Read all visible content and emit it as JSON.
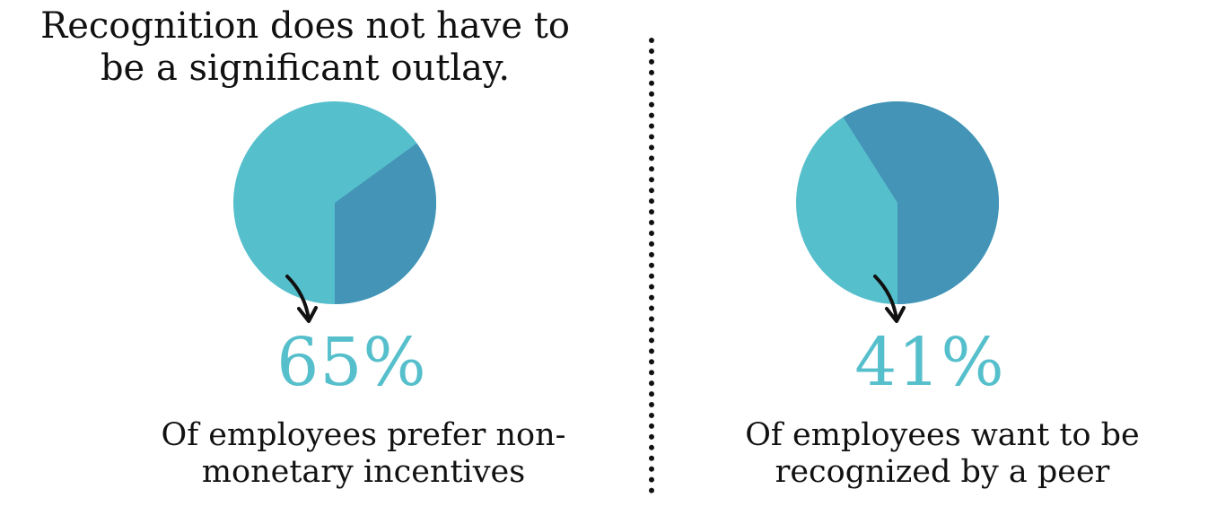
{
  "headline": "Recognition does not have to be a significant outlay.",
  "colors": {
    "light": "#56bfcc",
    "dark": "#4394b7",
    "text": "#111111",
    "divider": "#111111"
  },
  "chart_data": [
    {
      "type": "pie",
      "slices": [
        {
          "value": 65,
          "color": "#56bfcc"
        },
        {
          "value": 35,
          "color": "#4394b7"
        }
      ],
      "highlight_value": "65%",
      "caption": "Of employees prefer non-monetary incentives"
    },
    {
      "type": "pie",
      "slices": [
        {
          "value": 41,
          "color": "#56bfcc"
        },
        {
          "value": 59,
          "color": "#4394b7"
        }
      ],
      "highlight_value": "41%",
      "caption": "Of employees want to be recognized by a peer"
    }
  ]
}
